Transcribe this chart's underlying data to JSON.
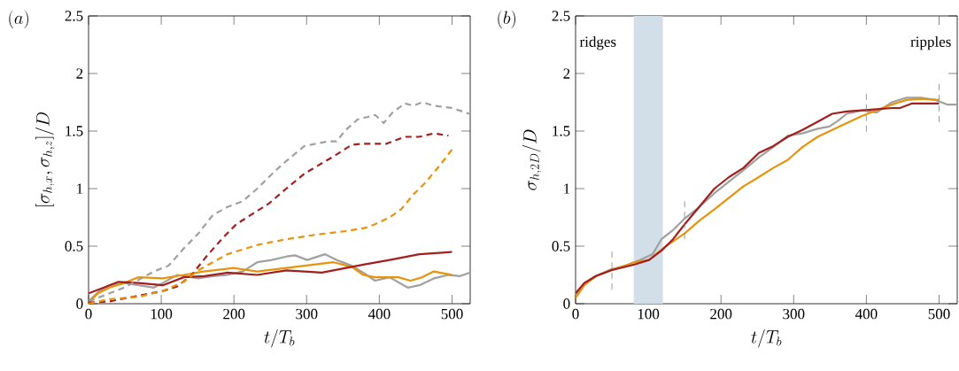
{
  "chart_data": [
    {
      "type": "line",
      "title": "(a)",
      "xlabel": "t/T_b",
      "ylabel": "[\\sigma_{h,x},\\sigma_{h,z}]/D",
      "xlim": [
        0,
        525
      ],
      "ylim": [
        0,
        2.5
      ],
      "xticks": [
        0,
        100,
        200,
        300,
        400,
        500
      ],
      "yticks": [
        0,
        0.5,
        1,
        1.5,
        2,
        2.5
      ],
      "marker": "none",
      "series": [
        {
          "color": "#a0a0a0",
          "line_style": "solid",
          "x": [
            0,
            13,
            29,
            49,
            69,
            90,
            102,
            122,
            151,
            171,
            191,
            212,
            232,
            252,
            272,
            284,
            301,
            325,
            341,
            362,
            378,
            394,
            414,
            439,
            455,
            475,
            495,
            511,
            525
          ],
          "values": [
            0.02,
            0.1,
            0.16,
            0.18,
            0.16,
            0.14,
            0.18,
            0.25,
            0.22,
            0.24,
            0.25,
            0.28,
            0.36,
            0.38,
            0.41,
            0.42,
            0.38,
            0.43,
            0.38,
            0.33,
            0.27,
            0.2,
            0.23,
            0.14,
            0.16,
            0.22,
            0.25,
            0.24,
            0.27
          ]
        },
        {
          "color": "#e8930c",
          "line_style": "solid",
          "x": [
            0,
            13,
            29,
            49,
            69,
            102,
            131,
            158,
            199,
            232,
            272,
            297,
            337,
            362,
            378,
            394,
            426,
            443,
            459,
            475,
            500
          ],
          "values": [
            0.01,
            0.09,
            0.14,
            0.18,
            0.23,
            0.22,
            0.25,
            0.28,
            0.31,
            0.28,
            0.31,
            0.33,
            0.36,
            0.32,
            0.25,
            0.23,
            0.23,
            0.2,
            0.23,
            0.28,
            0.25
          ]
        },
        {
          "color": "#a31f1f",
          "line_style": "solid",
          "x": [
            0,
            21,
            41,
            69,
            102,
            131,
            159,
            191,
            232,
            272,
            321,
            354,
            378,
            414,
            455,
            500
          ],
          "values": [
            0.09,
            0.14,
            0.19,
            0.18,
            0.16,
            0.23,
            0.24,
            0.27,
            0.25,
            0.29,
            0.27,
            0.31,
            0.34,
            0.38,
            0.43,
            0.45
          ]
        },
        {
          "color": "#a0a0a0",
          "line_style": "dashed",
          "x": [
            0,
            29,
            49,
            90,
            110,
            131,
            151,
            171,
            191,
            212,
            232,
            256,
            272,
            297,
            313,
            329,
            341,
            354,
            370,
            394,
            406,
            418,
            435,
            447,
            459,
            475,
            500,
            524
          ],
          "values": [
            0.02,
            0.09,
            0.14,
            0.28,
            0.33,
            0.48,
            0.61,
            0.77,
            0.84,
            0.89,
            1.0,
            1.15,
            1.24,
            1.37,
            1.39,
            1.41,
            1.41,
            1.51,
            1.6,
            1.64,
            1.57,
            1.66,
            1.74,
            1.72,
            1.75,
            1.72,
            1.7,
            1.65
          ]
        },
        {
          "color": "#a31f1f",
          "line_style": "dashed",
          "x": [
            0,
            29,
            69,
            102,
            122,
            142,
            162,
            183,
            203,
            223,
            248,
            272,
            297,
            313,
            337,
            362,
            378,
            410,
            435,
            455,
            475,
            495
          ],
          "values": [
            0.01,
            0.02,
            0.07,
            0.11,
            0.15,
            0.25,
            0.41,
            0.56,
            0.69,
            0.77,
            0.87,
            1.0,
            1.13,
            1.19,
            1.28,
            1.38,
            1.39,
            1.39,
            1.45,
            1.45,
            1.48,
            1.46
          ]
        },
        {
          "color": "#e8930c",
          "line_style": "dashed",
          "x": [
            0,
            29,
            69,
            102,
            131,
            151,
            171,
            191,
            232,
            272,
            313,
            353,
            382,
            394,
            414,
            430,
            447,
            463,
            483,
            500
          ],
          "values": [
            0,
            0.04,
            0.06,
            0.11,
            0.19,
            0.29,
            0.36,
            0.43,
            0.51,
            0.56,
            0.6,
            0.63,
            0.66,
            0.69,
            0.75,
            0.82,
            0.95,
            1.05,
            1.2,
            1.34
          ]
        }
      ]
    },
    {
      "type": "line",
      "title": "(b)",
      "xlabel": "t/T_b",
      "ylabel": "\\sigma_{h,2D}/D",
      "xlim": [
        0,
        525
      ],
      "ylim": [
        0,
        2.5
      ],
      "xticks": [
        0,
        100,
        200,
        300,
        400,
        500
      ],
      "yticks": [
        0,
        0.5,
        1,
        1.5,
        2,
        2.5
      ],
      "marker": "none",
      "annotations": [
        "ridges",
        "ripples"
      ],
      "bands": [
        {
          "axis": "x",
          "from": 80,
          "to": 120,
          "color": "#d3dfe8"
        }
      ],
      "ref_lines": [
        {
          "axis": "x",
          "value": 50,
          "color": "#808080",
          "line_style": "dashed"
        },
        {
          "axis": "x",
          "value": 150,
          "color": "#808080",
          "line_style": "dashed"
        },
        {
          "axis": "x",
          "value": 400,
          "color": "#808080",
          "line_style": "dashed"
        },
        {
          "axis": "x",
          "value": 500,
          "color": "#808080",
          "line_style": "dashed"
        }
      ],
      "series": [
        {
          "color": "#a0a0a0",
          "line_style": "solid",
          "x": [
            0,
            12,
            28,
            49,
            69,
            89,
            106,
            118,
            134,
            150,
            170,
            191,
            211,
            231,
            252,
            272,
            292,
            312,
            333,
            349,
            361,
            373,
            394,
            414,
            435,
            455,
            475,
            495,
            511,
            525
          ],
          "values": [
            0.06,
            0.18,
            0.24,
            0.3,
            0.33,
            0.38,
            0.43,
            0.56,
            0.64,
            0.74,
            0.84,
            0.96,
            1.06,
            1.16,
            1.27,
            1.36,
            1.46,
            1.48,
            1.52,
            1.54,
            1.59,
            1.65,
            1.68,
            1.66,
            1.75,
            1.79,
            1.79,
            1.77,
            1.73,
            1.73
          ]
        },
        {
          "color": "#e8930c",
          "line_style": "solid",
          "x": [
            0,
            12,
            28,
            49,
            81,
            101,
            122,
            150,
            170,
            191,
            211,
            231,
            252,
            272,
            292,
            312,
            333,
            353,
            373,
            394,
            414,
            435,
            455,
            475,
            500
          ],
          "values": [
            0.05,
            0.16,
            0.24,
            0.29,
            0.36,
            0.38,
            0.49,
            0.61,
            0.72,
            0.82,
            0.92,
            1.02,
            1.1,
            1.18,
            1.25,
            1.36,
            1.45,
            1.51,
            1.57,
            1.63,
            1.68,
            1.73,
            1.77,
            1.78,
            1.77
          ]
        },
        {
          "color": "#a31f1f",
          "line_style": "solid",
          "x": [
            0,
            12,
            28,
            49,
            81,
            101,
            118,
            134,
            150,
            170,
            191,
            211,
            231,
            252,
            272,
            292,
            312,
            333,
            353,
            373,
            394,
            414,
            435,
            446,
            463,
            483,
            500
          ],
          "values": [
            0.09,
            0.18,
            0.24,
            0.29,
            0.34,
            0.38,
            0.46,
            0.56,
            0.69,
            0.84,
            1.0,
            1.1,
            1.18,
            1.31,
            1.37,
            1.45,
            1.51,
            1.58,
            1.65,
            1.67,
            1.68,
            1.69,
            1.7,
            1.7,
            1.74,
            1.74,
            1.74
          ]
        }
      ]
    }
  ]
}
